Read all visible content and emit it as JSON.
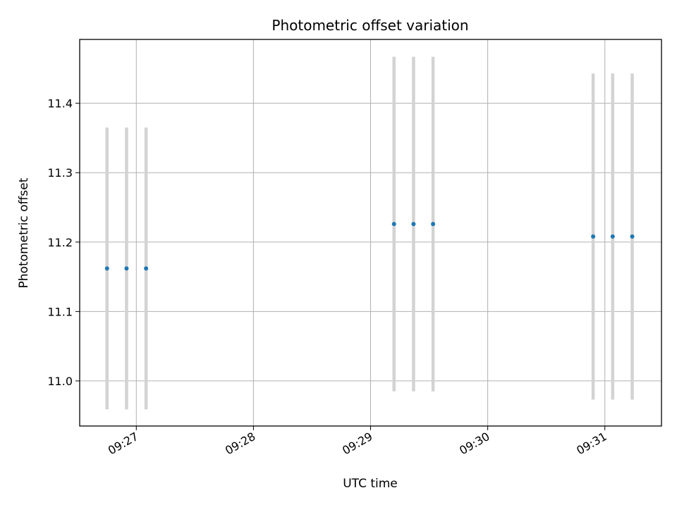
{
  "chart_data": {
    "type": "scatter",
    "title": "Photometric offset variation",
    "xlabel": "UTC time",
    "ylabel": "Photometric offset",
    "x_format": "HH:MM",
    "grid": true,
    "xlim": [
      "09:26:31",
      "09:31:29"
    ],
    "ylim": [
      10.935,
      11.492
    ],
    "x_ticks": [
      "09:27",
      "09:28",
      "09:29",
      "09:30",
      "09:31"
    ],
    "y_ticks": [
      11.0,
      11.1,
      11.2,
      11.3,
      11.4
    ],
    "y_tick_labels": [
      "11.0",
      "11.1",
      "11.2",
      "11.3",
      "11.4"
    ],
    "series": [
      {
        "marker_color": "#1f77b4",
        "errorbar_color": "#d3d3d3",
        "points": [
          {
            "t": "09:26:45",
            "y": 11.162,
            "err": 0.203
          },
          {
            "t": "09:26:55",
            "y": 11.162,
            "err": 0.203
          },
          {
            "t": "09:27:05",
            "y": 11.162,
            "err": 0.203
          },
          {
            "t": "09:29:12",
            "y": 11.226,
            "err": 0.241
          },
          {
            "t": "09:29:22",
            "y": 11.226,
            "err": 0.241
          },
          {
            "t": "09:29:32",
            "y": 11.226,
            "err": 0.241
          },
          {
            "t": "09:30:54",
            "y": 11.208,
            "err": 0.235
          },
          {
            "t": "09:31:04",
            "y": 11.208,
            "err": 0.235
          },
          {
            "t": "09:31:14",
            "y": 11.208,
            "err": 0.235
          }
        ]
      }
    ]
  }
}
